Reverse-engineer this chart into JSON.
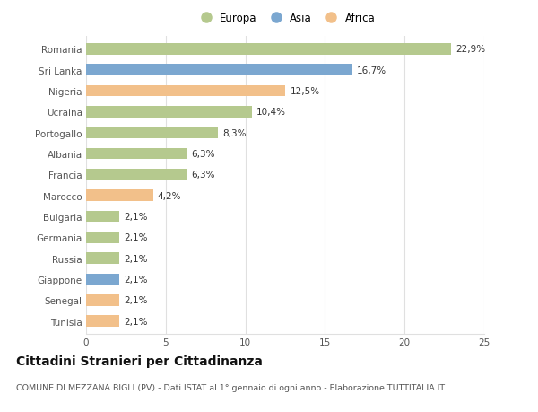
{
  "countries": [
    "Romania",
    "Sri Lanka",
    "Nigeria",
    "Ucraina",
    "Portogallo",
    "Albania",
    "Francia",
    "Marocco",
    "Bulgaria",
    "Germania",
    "Russia",
    "Giappone",
    "Senegal",
    "Tunisia"
  ],
  "values": [
    22.9,
    16.7,
    12.5,
    10.4,
    8.3,
    6.3,
    6.3,
    4.2,
    2.1,
    2.1,
    2.1,
    2.1,
    2.1,
    2.1
  ],
  "continents": [
    "Europa",
    "Asia",
    "Africa",
    "Europa",
    "Europa",
    "Europa",
    "Europa",
    "Africa",
    "Europa",
    "Europa",
    "Europa",
    "Asia",
    "Africa",
    "Africa"
  ],
  "colors": {
    "Europa": "#b5c98e",
    "Asia": "#7ba7d0",
    "Africa": "#f2c08a"
  },
  "legend_labels": [
    "Europa",
    "Asia",
    "Africa"
  ],
  "title": "Cittadini Stranieri per Cittadinanza",
  "subtitle": "COMUNE DI MEZZANA BIGLI (PV) - Dati ISTAT al 1° gennaio di ogni anno - Elaborazione TUTTITALIA.IT",
  "xlim": [
    0,
    25
  ],
  "xticks": [
    0,
    5,
    10,
    15,
    20,
    25
  ],
  "background_color": "#ffffff",
  "plot_bg_color": "#ffffff",
  "bar_height": 0.55,
  "label_fontsize": 7.5,
  "tick_fontsize": 7.5,
  "title_fontsize": 10,
  "subtitle_fontsize": 6.8,
  "grid_color": "#e0e0e0",
  "text_color": "#555555",
  "label_color": "#333333"
}
